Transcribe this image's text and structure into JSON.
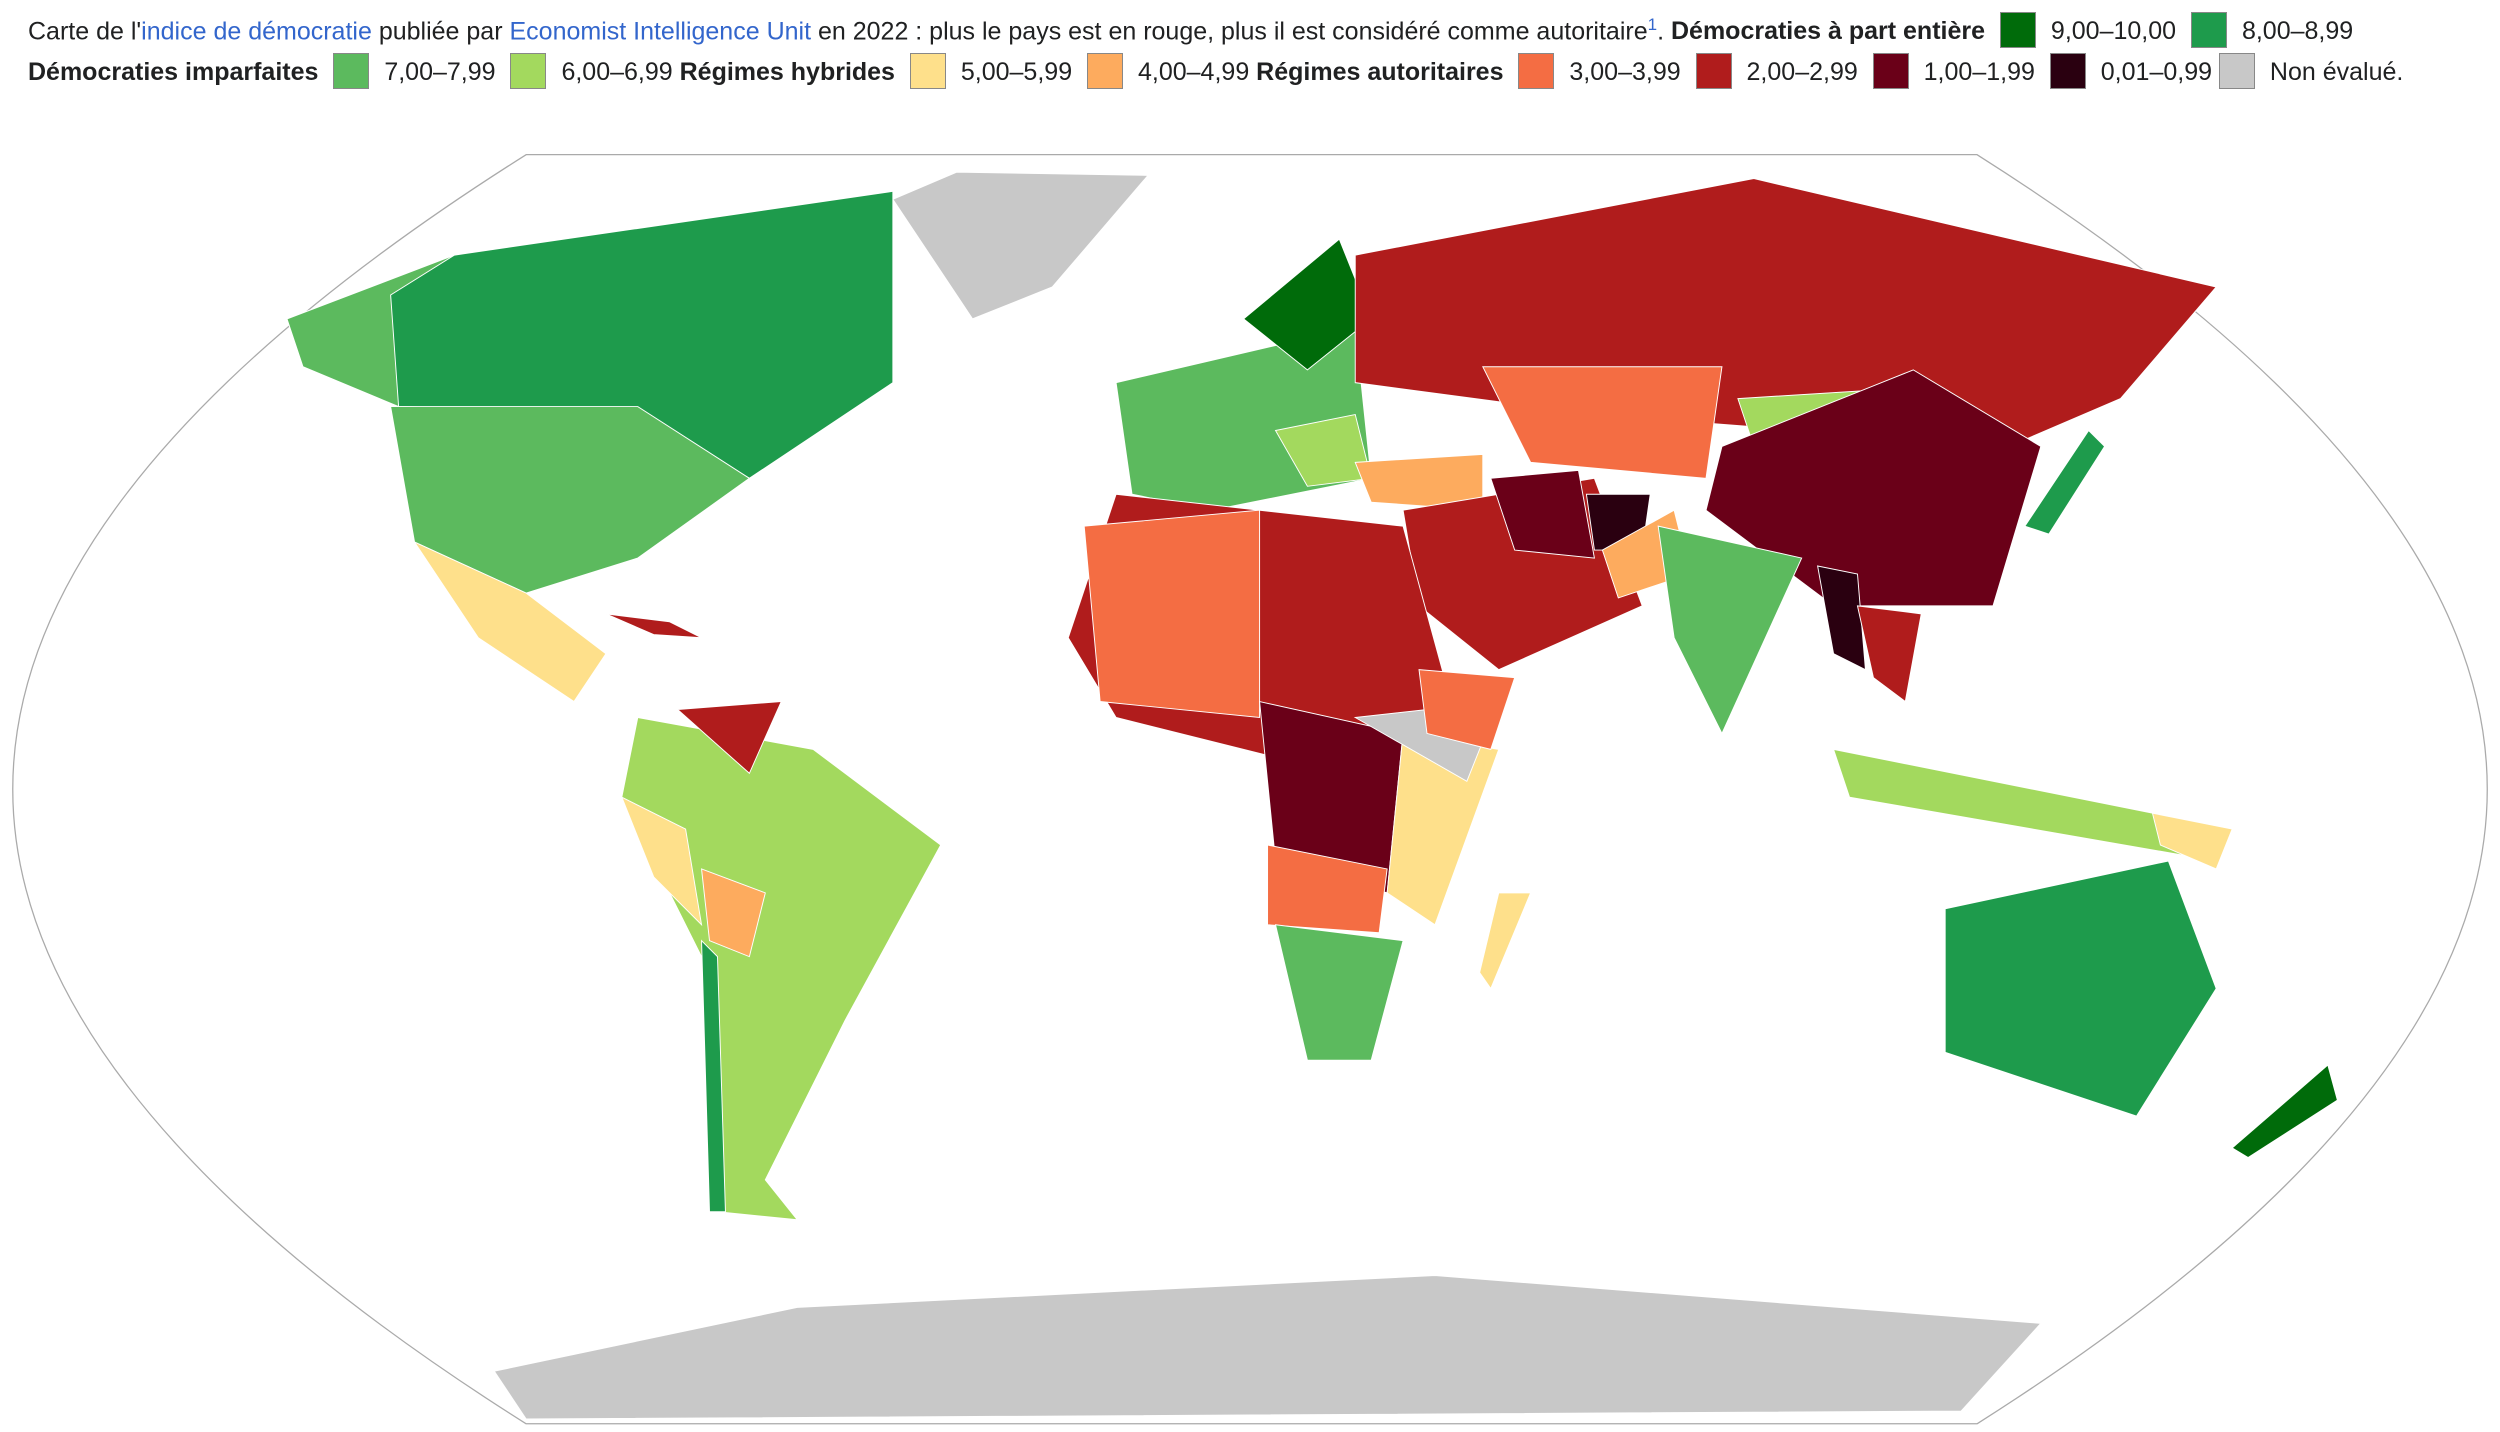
{
  "caption": {
    "intro": "Carte de l'",
    "link1": "indice de démocratie",
    "mid1": " publiée par ",
    "link2": "Economist Intelligence Unit",
    "mid2": " en 2022 : plus le pays est en rouge, plus il est considéré comme autoritaire",
    "note": "1",
    "end": "."
  },
  "legend": {
    "groups": [
      {
        "title": "Démocraties à part entière",
        "items": [
          {
            "label": "9,00–10,00",
            "color": "#006b0a"
          },
          {
            "label": "8,00–8,99",
            "color": "#1e9b4c"
          }
        ]
      },
      {
        "title": "Démocraties imparfaites",
        "items": [
          {
            "label": "7,00–7,99",
            "color": "#5cba5e"
          },
          {
            "label": "6,00–6,99",
            "color": "#a3d95e"
          }
        ]
      },
      {
        "title": "Régimes hybrides",
        "items": [
          {
            "label": "5,00–5,99",
            "color": "#fee08b"
          },
          {
            "label": "4,00–4,99",
            "color": "#fdab5e"
          }
        ]
      },
      {
        "title": "Régimes autoritaires",
        "items": [
          {
            "label": "3,00–3,99",
            "color": "#f46d43"
          },
          {
            "label": "2,00–2,99",
            "color": "#b01c1c"
          },
          {
            "label": "1,00–1,99",
            "color": "#6a0018"
          },
          {
            "label": "0,01–0,99",
            "color": "#2a0010"
          }
        ]
      }
    ],
    "unrated": {
      "label": "Non évalué.",
      "color": "#c8c8c8"
    }
  }
}
